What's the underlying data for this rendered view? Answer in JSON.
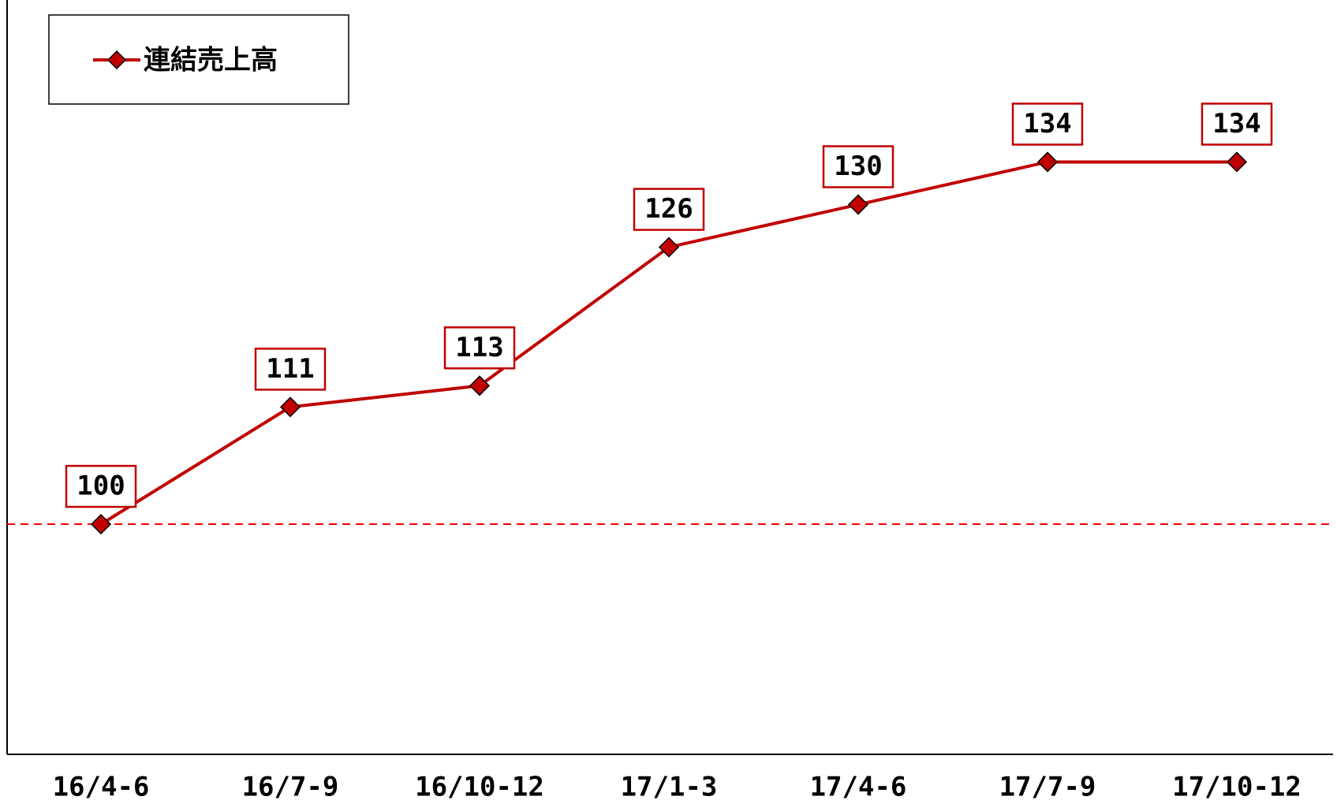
{
  "chart_data": {
    "type": "line",
    "categories": [
      "16/4-6",
      "16/7-9",
      "16/10-12",
      "17/1-3",
      "17/4-6",
      "17/7-9",
      "17/10-12"
    ],
    "series": [
      {
        "name": "連結売上高",
        "color": "#c00000",
        "values": [
          100,
          111,
          113,
          126,
          130,
          134,
          134
        ]
      }
    ],
    "ylim": [
      78.4,
      149.2
    ],
    "reference_line": 100,
    "reference_color": "#ff0000",
    "legend": "upper left"
  }
}
